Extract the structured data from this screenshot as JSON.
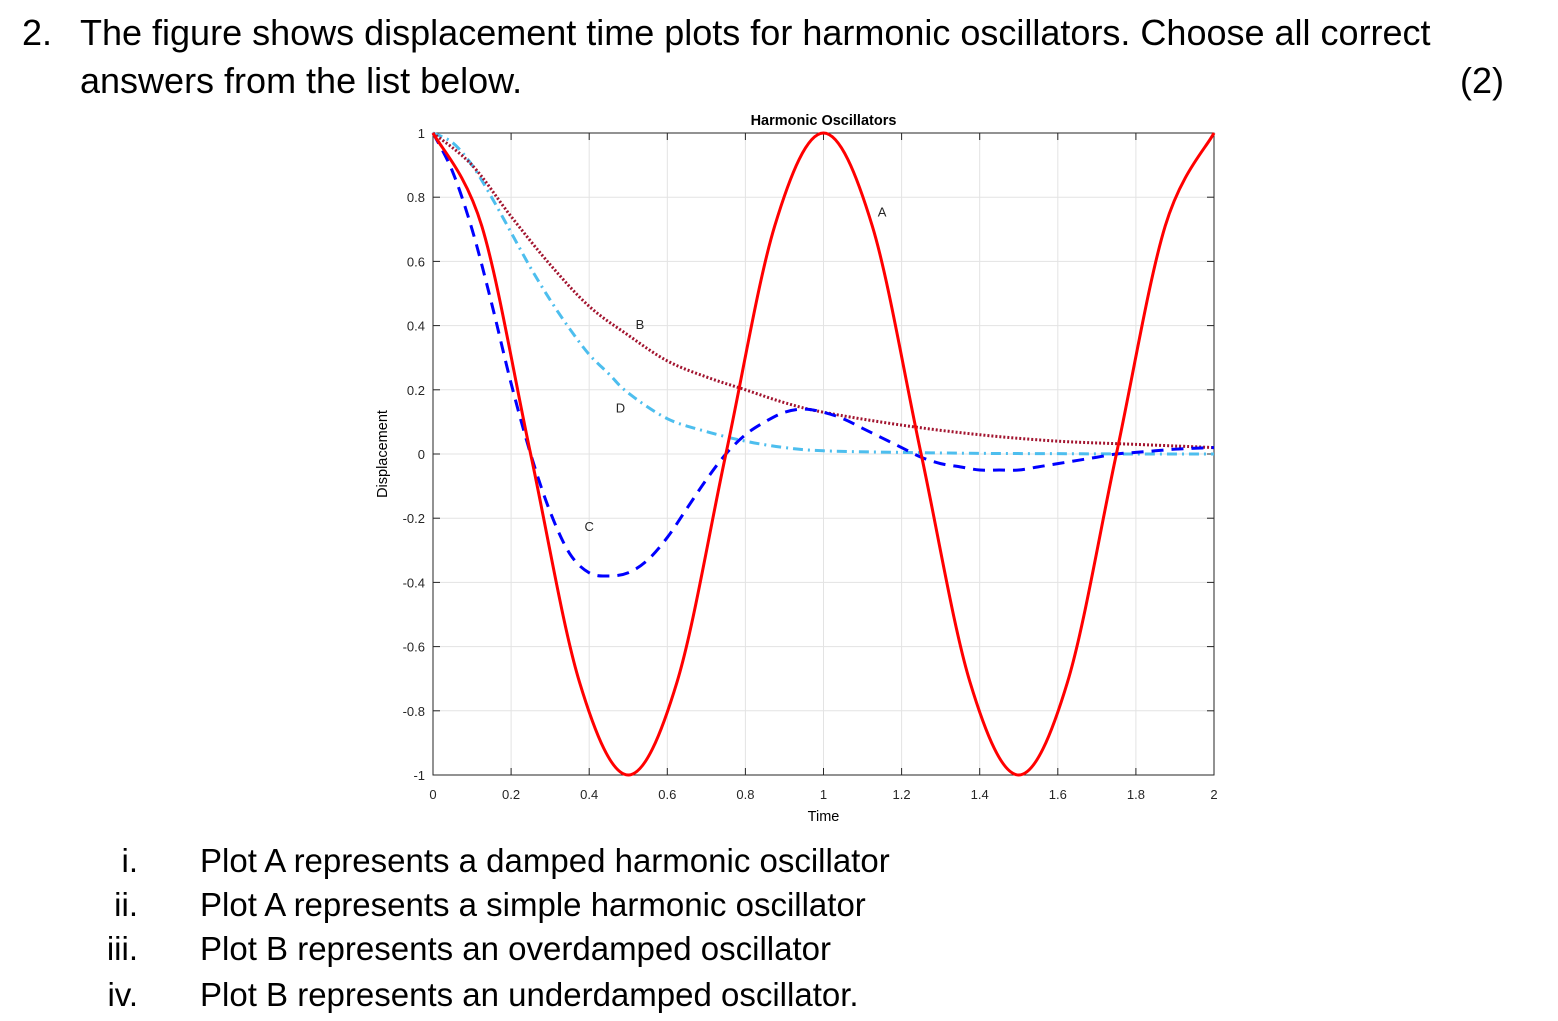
{
  "question": {
    "number": "2.",
    "line1": "The figure shows displacement time plots for harmonic oscillators.  Choose all correct",
    "line2": "answers from the list below.",
    "marks": "(2)"
  },
  "chart_data": {
    "type": "line",
    "title": "Harmonic Oscillators",
    "xlabel": "Time",
    "ylabel": "Displacement",
    "xlim": [
      0,
      2
    ],
    "ylim": [
      -1,
      1
    ],
    "grid": true,
    "xticks": [
      0,
      0.2,
      0.4,
      0.6,
      0.8,
      1,
      1.2,
      1.4,
      1.6,
      1.8,
      2
    ],
    "yticks": [
      -1,
      -0.8,
      -0.6,
      -0.4,
      -0.2,
      0,
      0.2,
      0.4,
      0.6,
      0.8,
      1
    ],
    "series": [
      {
        "name": "A",
        "style": "solid",
        "color": "#ff0000",
        "x": [
          0,
          0.125,
          0.25,
          0.375,
          0.5,
          0.625,
          0.75,
          0.875,
          1,
          1.125,
          1.25,
          1.375,
          1.5,
          1.625,
          1.75,
          1.875,
          2
        ],
        "y": [
          1,
          0.71,
          0,
          -0.71,
          -1,
          -0.71,
          0,
          0.71,
          1,
          0.71,
          0,
          -0.71,
          -1,
          -0.71,
          0,
          0.71,
          1
        ],
        "label_at": [
          1.15,
          0.74
        ]
      },
      {
        "name": "B",
        "style": "dotted",
        "color": "#a2142f",
        "x": [
          0,
          0.1,
          0.2,
          0.3,
          0.4,
          0.5,
          0.6,
          0.7,
          0.8,
          0.9,
          1,
          1.2,
          1.4,
          1.6,
          1.8,
          2
        ],
        "y": [
          1,
          0.9,
          0.74,
          0.59,
          0.46,
          0.37,
          0.29,
          0.24,
          0.2,
          0.16,
          0.13,
          0.09,
          0.06,
          0.04,
          0.03,
          0.02
        ],
        "label_at": [
          0.53,
          0.39
        ]
      },
      {
        "name": "C",
        "style": "dashed",
        "color": "#0000ff",
        "x": [
          0,
          0.05,
          0.1,
          0.15,
          0.2,
          0.25,
          0.3,
          0.35,
          0.4,
          0.45,
          0.5,
          0.55,
          0.6,
          0.65,
          0.7,
          0.75,
          0.8,
          0.85,
          0.9,
          0.95,
          1,
          1.05,
          1.1,
          1.15,
          1.2,
          1.25,
          1.3,
          1.35,
          1.4,
          1.45,
          1.5,
          1.55,
          1.6,
          1.65,
          1.7,
          1.75,
          1.8,
          1.85,
          1.9,
          1.95,
          2
        ],
        "y": [
          1,
          0.88,
          0.7,
          0.47,
          0.22,
          0,
          -0.18,
          -0.31,
          -0.37,
          -0.38,
          -0.37,
          -0.33,
          -0.26,
          -0.17,
          -0.08,
          0,
          0.06,
          0.1,
          0.13,
          0.14,
          0.13,
          0.11,
          0.08,
          0.05,
          0.02,
          -0.01,
          -0.03,
          -0.04,
          -0.05,
          -0.05,
          -0.05,
          -0.04,
          -0.03,
          -0.02,
          -0.01,
          0,
          0.005,
          0.01,
          0.015,
          0.018,
          0.02
        ],
        "label_at": [
          0.4,
          -0.24
        ]
      },
      {
        "name": "D",
        "style": "dashdot",
        "color": "#4dbeee",
        "x": [
          0,
          0.05,
          0.1,
          0.15,
          0.2,
          0.25,
          0.3,
          0.35,
          0.4,
          0.45,
          0.5,
          0.6,
          0.7,
          0.8,
          0.9,
          1,
          1.2,
          1.4,
          1.6,
          1.8,
          2
        ],
        "y": [
          1,
          0.97,
          0.9,
          0.8,
          0.69,
          0.58,
          0.48,
          0.39,
          0.31,
          0.25,
          0.19,
          0.11,
          0.07,
          0.04,
          0.02,
          0.01,
          0.005,
          0.002,
          0.001,
          0,
          0
        ],
        "label_at": [
          0.48,
          0.13
        ]
      }
    ]
  },
  "options": [
    {
      "num": "i.",
      "text": "Plot A represents a damped harmonic oscillator"
    },
    {
      "num": "ii.",
      "text": "Plot A represents a simple harmonic oscillator"
    },
    {
      "num": "iii.",
      "text": "Plot B represents an overdamped oscillator"
    },
    {
      "num": "iv.",
      "text": "Plot B represents an underdamped oscillator."
    }
  ]
}
